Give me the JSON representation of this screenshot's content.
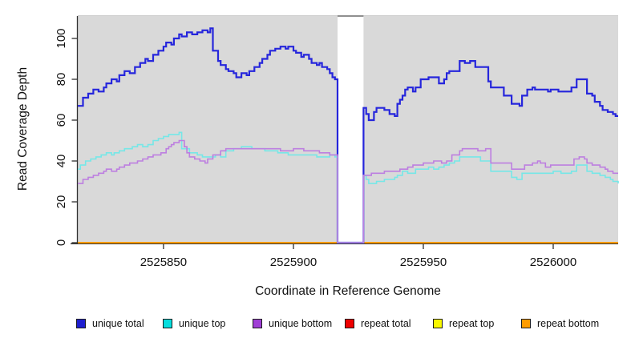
{
  "chart_data": {
    "type": "line",
    "step": true,
    "title": "",
    "xlabel": "Coordinate in Reference Genome",
    "ylabel": "Read Coverage Depth",
    "x_ticks": [
      2525850,
      2525900,
      2525950,
      2526000
    ],
    "y_ticks": [
      0,
      20,
      40,
      60,
      80,
      100
    ],
    "xlim": [
      2525817,
      2526025
    ],
    "ylim": [
      0,
      111
    ],
    "grid": false,
    "legend_position": "bottom",
    "plot_background": "#ffffff",
    "shaded_region_color": "#d9d9d9",
    "shaded_regions": [
      [
        2525817,
        2525917
      ],
      [
        2525927,
        2526025
      ]
    ],
    "coverage_gap": [
      2525917,
      2525927
    ],
    "axis_color": "#303030",
    "series": [
      {
        "name": "unique total",
        "line_color": "#2626dc",
        "swatch_color": "#1f1fce",
        "width": 2.2,
        "points": [
          [
            2525817,
            67
          ],
          [
            2525819,
            71
          ],
          [
            2525821,
            73
          ],
          [
            2525823,
            75
          ],
          [
            2525825,
            74
          ],
          [
            2525827,
            76
          ],
          [
            2525828,
            78
          ],
          [
            2525830,
            80
          ],
          [
            2525832,
            79
          ],
          [
            2525833,
            82
          ],
          [
            2525835,
            84
          ],
          [
            2525837,
            83
          ],
          [
            2525839,
            86
          ],
          [
            2525841,
            88
          ],
          [
            2525843,
            90
          ],
          [
            2525844,
            89
          ],
          [
            2525846,
            92
          ],
          [
            2525848,
            94
          ],
          [
            2525850,
            96
          ],
          [
            2525851,
            98
          ],
          [
            2525853,
            97
          ],
          [
            2525854,
            100
          ],
          [
            2525856,
            102
          ],
          [
            2525857,
            101
          ],
          [
            2525859,
            103
          ],
          [
            2525861,
            102
          ],
          [
            2525863,
            103
          ],
          [
            2525865,
            104
          ],
          [
            2525867,
            103
          ],
          [
            2525868,
            105
          ],
          [
            2525869,
            94
          ],
          [
            2525871,
            89
          ],
          [
            2525872,
            87
          ],
          [
            2525874,
            85
          ],
          [
            2525875,
            84
          ],
          [
            2525877,
            83
          ],
          [
            2525878,
            81
          ],
          [
            2525880,
            83
          ],
          [
            2525882,
            82
          ],
          [
            2525883,
            84
          ],
          [
            2525885,
            86
          ],
          [
            2525887,
            88
          ],
          [
            2525888,
            90
          ],
          [
            2525890,
            92
          ],
          [
            2525891,
            94
          ],
          [
            2525893,
            95
          ],
          [
            2525895,
            96
          ],
          [
            2525897,
            95
          ],
          [
            2525898,
            96
          ],
          [
            2525900,
            94
          ],
          [
            2525901,
            93
          ],
          [
            2525903,
            91
          ],
          [
            2525904,
            92
          ],
          [
            2525906,
            90
          ],
          [
            2525907,
            88
          ],
          [
            2525909,
            87
          ],
          [
            2525910,
            88
          ],
          [
            2525911,
            86
          ],
          [
            2525913,
            85
          ],
          [
            2525914,
            83
          ],
          [
            2525915,
            81
          ],
          [
            2525916,
            80
          ],
          [
            2525917,
            0
          ],
          [
            2525927,
            66
          ],
          [
            2525928,
            63
          ],
          [
            2525929,
            60
          ],
          [
            2525931,
            64
          ],
          [
            2525932,
            66
          ],
          [
            2525935,
            65
          ],
          [
            2525937,
            63
          ],
          [
            2525939,
            62
          ],
          [
            2525940,
            68
          ],
          [
            2525941,
            70
          ],
          [
            2525942,
            72
          ],
          [
            2525943,
            75
          ],
          [
            2525944,
            76
          ],
          [
            2525946,
            74
          ],
          [
            2525947,
            76
          ],
          [
            2525949,
            80
          ],
          [
            2525952,
            81
          ],
          [
            2525954,
            81
          ],
          [
            2525956,
            78
          ],
          [
            2525958,
            80
          ],
          [
            2525959,
            83
          ],
          [
            2525960,
            84
          ],
          [
            2525964,
            89
          ],
          [
            2525966,
            88
          ],
          [
            2525968,
            89
          ],
          [
            2525970,
            86
          ],
          [
            2525975,
            79
          ],
          [
            2525976,
            76
          ],
          [
            2525981,
            72
          ],
          [
            2525984,
            68
          ],
          [
            2525987,
            67
          ],
          [
            2525988,
            72
          ],
          [
            2525990,
            75
          ],
          [
            2525992,
            76
          ],
          [
            2525993,
            75
          ],
          [
            2525998,
            74
          ],
          [
            2525999,
            75
          ],
          [
            2526002,
            74
          ],
          [
            2526007,
            76
          ],
          [
            2526009,
            80
          ],
          [
            2526013,
            73
          ],
          [
            2526015,
            72
          ],
          [
            2526016,
            69
          ],
          [
            2526018,
            67
          ],
          [
            2526019,
            65
          ],
          [
            2526021,
            64
          ],
          [
            2526023,
            63
          ],
          [
            2526024,
            62
          ],
          [
            2526025,
            62
          ]
        ]
      },
      {
        "name": "unique top",
        "line_color": "#76e7e7",
        "swatch_color": "#06dede",
        "width": 1.6,
        "points": [
          [
            2525817,
            36
          ],
          [
            2525818,
            38
          ],
          [
            2525820,
            40
          ],
          [
            2525822,
            41
          ],
          [
            2525824,
            42
          ],
          [
            2525826,
            43
          ],
          [
            2525828,
            44
          ],
          [
            2525830,
            43
          ],
          [
            2525831,
            44
          ],
          [
            2525833,
            45
          ],
          [
            2525835,
            46
          ],
          [
            2525838,
            47
          ],
          [
            2525840,
            48
          ],
          [
            2525842,
            47
          ],
          [
            2525844,
            48
          ],
          [
            2525846,
            50
          ],
          [
            2525848,
            51
          ],
          [
            2525850,
            52
          ],
          [
            2525852,
            53
          ],
          [
            2525856,
            54
          ],
          [
            2525857,
            46
          ],
          [
            2525860,
            44
          ],
          [
            2525863,
            43
          ],
          [
            2525865,
            42
          ],
          [
            2525870,
            43
          ],
          [
            2525872,
            42
          ],
          [
            2525874,
            45
          ],
          [
            2525877,
            46
          ],
          [
            2525880,
            47
          ],
          [
            2525884,
            46
          ],
          [
            2525889,
            45
          ],
          [
            2525894,
            44
          ],
          [
            2525898,
            43
          ],
          [
            2525909,
            42
          ],
          [
            2525914,
            43
          ],
          [
            2525916,
            42
          ],
          [
            2525917,
            0
          ],
          [
            2525927,
            33
          ],
          [
            2525928,
            31
          ],
          [
            2525929,
            29
          ],
          [
            2525932,
            30
          ],
          [
            2525935,
            31
          ],
          [
            2525939,
            32
          ],
          [
            2525940,
            33
          ],
          [
            2525942,
            35
          ],
          [
            2525944,
            34
          ],
          [
            2525947,
            36
          ],
          [
            2525952,
            37
          ],
          [
            2525954,
            36
          ],
          [
            2525956,
            37
          ],
          [
            2525958,
            38
          ],
          [
            2525960,
            39
          ],
          [
            2525962,
            40
          ],
          [
            2525964,
            42
          ],
          [
            2525972,
            40
          ],
          [
            2525976,
            35
          ],
          [
            2525984,
            32
          ],
          [
            2525986,
            31
          ],
          [
            2525988,
            34
          ],
          [
            2526000,
            35
          ],
          [
            2526003,
            34
          ],
          [
            2526007,
            35
          ],
          [
            2526009,
            38
          ],
          [
            2526013,
            35
          ],
          [
            2526015,
            34
          ],
          [
            2526018,
            33
          ],
          [
            2526020,
            32
          ],
          [
            2526022,
            31
          ],
          [
            2526023,
            30
          ],
          [
            2526025,
            29
          ]
        ]
      },
      {
        "name": "unique bottom",
        "line_color": "#bd7fe0",
        "swatch_color": "#a03fd6",
        "width": 1.6,
        "points": [
          [
            2525817,
            29
          ],
          [
            2525819,
            31
          ],
          [
            2525821,
            32
          ],
          [
            2525823,
            33
          ],
          [
            2525825,
            34
          ],
          [
            2525827,
            35
          ],
          [
            2525828,
            36
          ],
          [
            2525830,
            35
          ],
          [
            2525832,
            36
          ],
          [
            2525833,
            37
          ],
          [
            2525835,
            38
          ],
          [
            2525837,
            39
          ],
          [
            2525840,
            40
          ],
          [
            2525842,
            41
          ],
          [
            2525844,
            42
          ],
          [
            2525846,
            43
          ],
          [
            2525849,
            44
          ],
          [
            2525851,
            46
          ],
          [
            2525852,
            47
          ],
          [
            2525853,
            48
          ],
          [
            2525854,
            49
          ],
          [
            2525856,
            50
          ],
          [
            2525858,
            47
          ],
          [
            2525859,
            44
          ],
          [
            2525860,
            42
          ],
          [
            2525862,
            41
          ],
          [
            2525864,
            40
          ],
          [
            2525866,
            39
          ],
          [
            2525867,
            41
          ],
          [
            2525869,
            43
          ],
          [
            2525872,
            45
          ],
          [
            2525874,
            46
          ],
          [
            2525895,
            45
          ],
          [
            2525900,
            46
          ],
          [
            2525904,
            45
          ],
          [
            2525910,
            44
          ],
          [
            2525914,
            43
          ],
          [
            2525917,
            0
          ],
          [
            2525927,
            33
          ],
          [
            2525930,
            34
          ],
          [
            2525935,
            35
          ],
          [
            2525941,
            36
          ],
          [
            2525944,
            37
          ],
          [
            2525946,
            38
          ],
          [
            2525950,
            39
          ],
          [
            2525954,
            40
          ],
          [
            2525957,
            39
          ],
          [
            2525959,
            40
          ],
          [
            2525961,
            43
          ],
          [
            2525964,
            45
          ],
          [
            2525965,
            46
          ],
          [
            2525971,
            45
          ],
          [
            2525974,
            46
          ],
          [
            2525976,
            39
          ],
          [
            2525984,
            36
          ],
          [
            2525989,
            38
          ],
          [
            2525992,
            39
          ],
          [
            2525994,
            40
          ],
          [
            2525995,
            39
          ],
          [
            2525997,
            37
          ],
          [
            2525999,
            38
          ],
          [
            2526008,
            41
          ],
          [
            2526010,
            42
          ],
          [
            2526012,
            41
          ],
          [
            2526013,
            39
          ],
          [
            2526015,
            38
          ],
          [
            2526018,
            37
          ],
          [
            2526020,
            36
          ],
          [
            2526021,
            35
          ],
          [
            2526023,
            34
          ],
          [
            2526025,
            34
          ]
        ]
      },
      {
        "name": "repeat total",
        "line_color": "#e30000",
        "swatch_color": "#ee0000",
        "width": 1.6,
        "points": [
          [
            2525817,
            0
          ],
          [
            2526025,
            0
          ]
        ]
      },
      {
        "name": "repeat top",
        "line_color": "#f4f400",
        "swatch_color": "#f8f800",
        "width": 1.6,
        "points": [
          [
            2525817,
            0
          ],
          [
            2526025,
            0
          ]
        ]
      },
      {
        "name": "repeat bottom",
        "line_color": "#ff9c00",
        "swatch_color": "#ff9c00",
        "width": 2,
        "points": [
          [
            2525817,
            0
          ],
          [
            2526025,
            0
          ]
        ]
      }
    ],
    "draw_order": [
      "repeat total",
      "repeat top",
      "repeat bottom",
      "unique total",
      "unique top",
      "unique bottom"
    ]
  },
  "legend": {
    "items": [
      {
        "label": "unique total",
        "color": "#1f1fce"
      },
      {
        "label": "unique top",
        "color": "#06dede"
      },
      {
        "label": "unique bottom",
        "color": "#a03fd6"
      },
      {
        "label": "repeat total",
        "color": "#ee0000"
      },
      {
        "label": "repeat top",
        "color": "#f8f800"
      },
      {
        "label": "repeat bottom",
        "color": "#ff9c00"
      }
    ]
  }
}
